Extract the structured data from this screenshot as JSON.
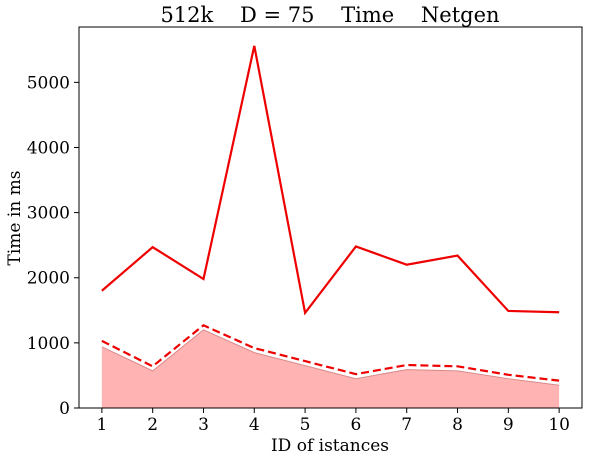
{
  "chart_data": {
    "type": "line",
    "title": "512k    D = 75    Time    Netgen",
    "xlabel": "ID of istances",
    "ylabel": "Time in ms",
    "x": [
      1,
      2,
      3,
      4,
      5,
      6,
      7,
      8,
      9,
      10
    ],
    "xlim": [
      0.55,
      10.45
    ],
    "ylim": [
      0,
      5850
    ],
    "yticks": [
      0,
      1000,
      2000,
      3000,
      4000,
      5000
    ],
    "grid": false,
    "series": [
      {
        "style": "solid",
        "color": "#ee0000",
        "values": [
          1800,
          2470,
          1980,
          5560,
          1460,
          2480,
          2200,
          2340,
          1490,
          1470
        ]
      },
      {
        "style": "dashed",
        "color": "#ee0000",
        "values": [
          1030,
          640,
          1270,
          920,
          720,
          520,
          660,
          640,
          510,
          420
        ]
      },
      {
        "style": "filled-area",
        "color": "#ffb3b3",
        "values": [
          940,
          570,
          1200,
          850,
          650,
          450,
          590,
          570,
          450,
          350
        ]
      }
    ]
  }
}
